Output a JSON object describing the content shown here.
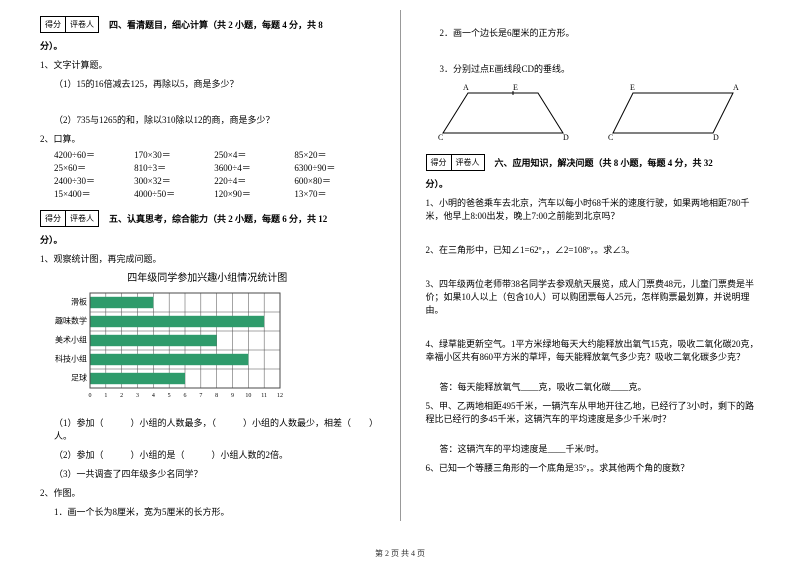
{
  "scorebox": {
    "c1": "得分",
    "c2": "评卷人"
  },
  "sec4": {
    "title": "四、看清题目，细心计算（共 2 小题，每题 4 分，共 8",
    "title_tail": "分）。",
    "q1": "1、文字计算题。",
    "q1a": "（1）15的16倍减去125，再除以5，商是多少？",
    "q1b": "（2）735与1265的和，除以310除以12的商，商是多少？",
    "q2": "2、口算。",
    "calc": [
      [
        "4200÷60＝",
        "170×30＝",
        "250×4＝",
        "85×20＝"
      ],
      [
        "25×60＝",
        "810÷3＝",
        "3600÷4＝",
        "6300÷90＝"
      ],
      [
        "2400÷30＝",
        "300×32＝",
        "220÷4＝",
        "600×80＝"
      ],
      [
        "15×400＝",
        "4000÷50＝",
        "120×90＝",
        "13×70＝"
      ]
    ]
  },
  "sec5": {
    "title": "五、认真思考，综合能力（共 2 小题，每题 6 分，共 12",
    "title_tail": "分）。",
    "q1": "1、观察统计图，再完成问题。",
    "chart_title": "四年级同学参加兴趣小组情况统计图",
    "chart": {
      "categories": [
        "滑板",
        "趣味数学",
        "美术小组",
        "科技小组",
        "足球"
      ],
      "values": [
        4,
        11,
        8,
        10,
        6
      ],
      "xmax": 12,
      "xticks": [
        0,
        1,
        2,
        3,
        4,
        5,
        6,
        7,
        8,
        9,
        10,
        11,
        12
      ],
      "bar_color": "#2e9b6b",
      "grid_color": "#4a4a4a",
      "bg_color": "#ffffff",
      "label_fontsize": 8
    },
    "q1_1": "（1）参加（　　　）小组的人数最多，（　　　）小组的人数最少，相差（　　）人。",
    "q1_2": "（2）参加（　　　）小组的是（　　　）小组人数的2倍。",
    "q1_3": "（3）一共调查了四年级多少名同学？",
    "q2": "2、作图。",
    "q2a": "1．画一个长为8厘米，宽为5厘米的长方形。"
  },
  "right": {
    "r2": "2．画一个边长是6厘米的正方形。",
    "r3": "3．分别过点E画线段CD的垂线。",
    "shapes": {
      "trapezoid": {
        "A": "A",
        "E": "E",
        "C": "C",
        "D": "D",
        "stroke": "#000000"
      },
      "parallelogram": {
        "E": "E",
        "A": "A",
        "C": "C",
        "D": "D",
        "stroke": "#000000"
      }
    }
  },
  "sec6": {
    "title": "六、应用知识，解决问题（共 8 小题，每题 4 分，共 32",
    "title_tail": "分）。",
    "q1": "1、小明的爸爸乘车去北京，汽车以每小时68千米的速度行驶，如果两地相距780千米，他早上8:00出发，晚上7:00之前能到北京吗？",
    "q2": "2、在三角形中，已知∠1=62º，，∠2=108º，。求∠3。",
    "q3": "3、四年级两位老师带38名同学去参观航天展览，成人门票费48元，儿童门票费是半价；如果10人以上（包含10人）可以购团票每人25元，怎样购票最划算，并说明理由。",
    "q4": "4、绿草能更新空气。1平方米绿地每天大约能释放出氧气15克，吸收二氧化碳20克，幸福小区共有860平方米的草坪，每天能释放氧气多少克？吸收二氧化碳多少克？",
    "q4a": "答：每天能释放氧气____克，吸收二氧化碳____克。",
    "q5": "5、甲、乙两地相距495千米，一辆汽车从甲地开往乙地，已经行了3小时，剩下的路程比已经行的多45千米，这辆汽车的平均速度是多少千米/时？",
    "q5a": "答：这辆汽车的平均速度是____千米/时。",
    "q6": "6、已知一个等腰三角形的一个底角是35º，。求其他两个角的度数？"
  },
  "footer": "第 2 页 共 4 页"
}
